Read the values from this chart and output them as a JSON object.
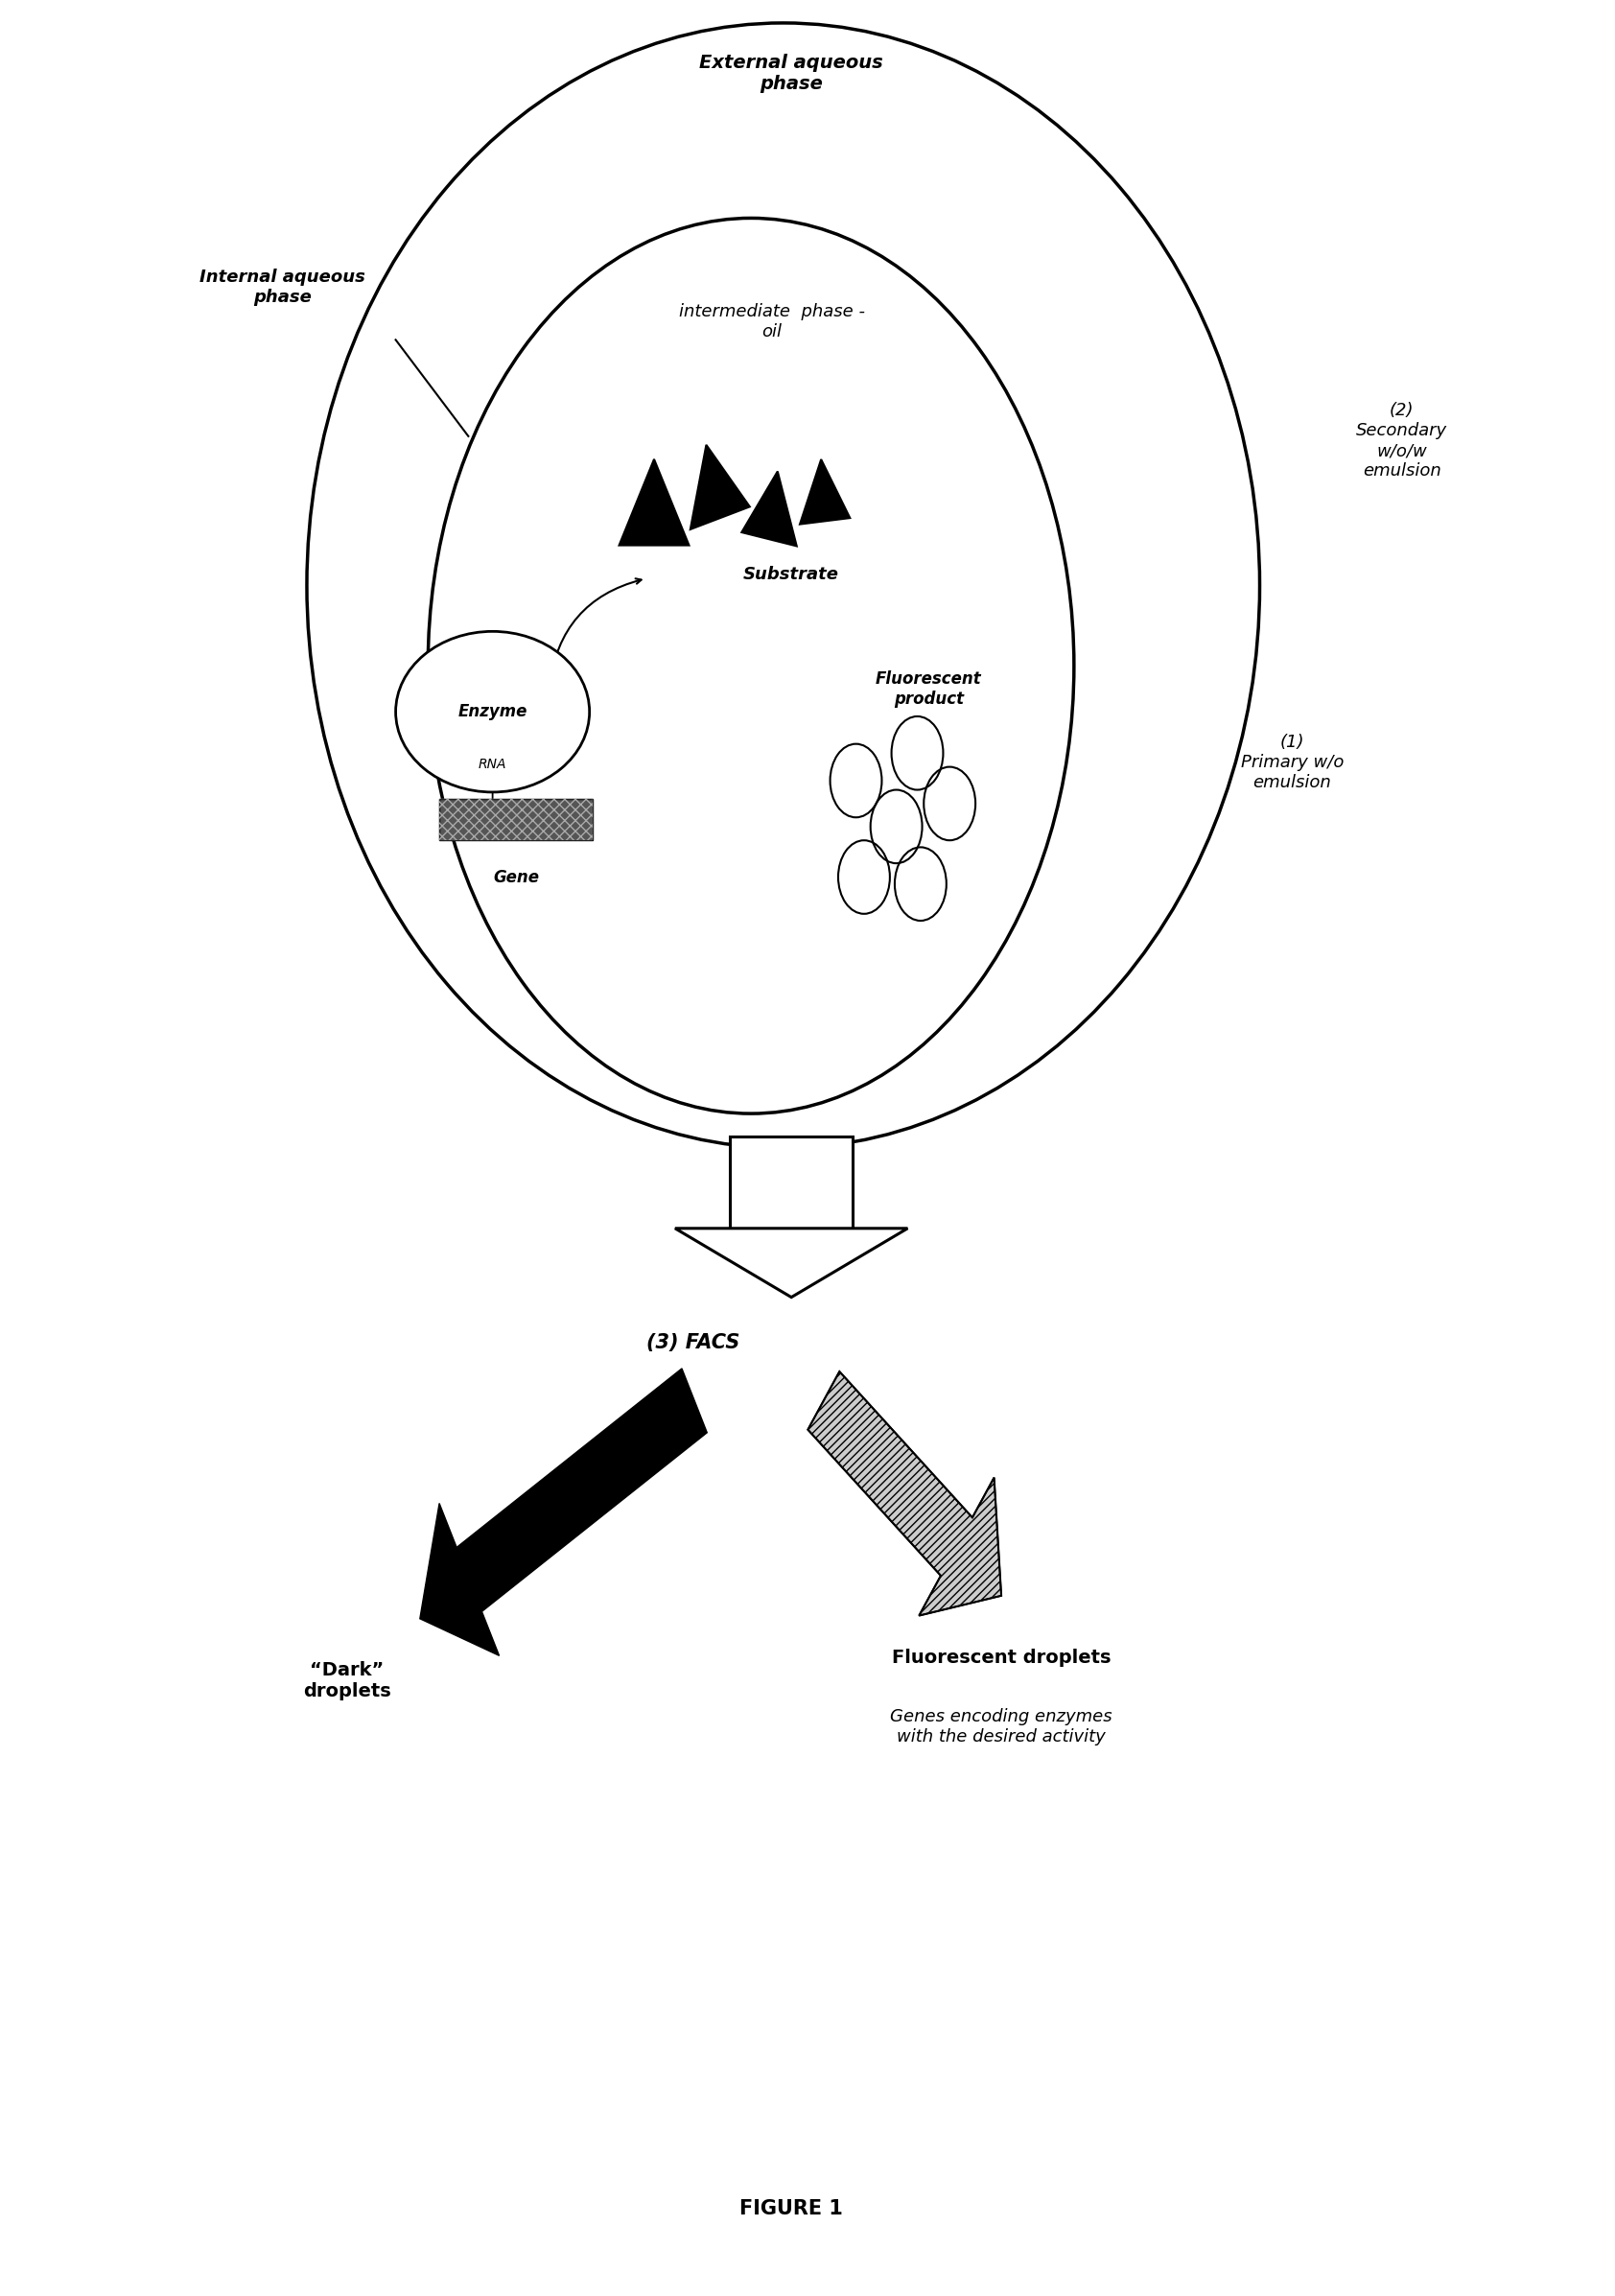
{
  "bg_color": "#ffffff",
  "fig_width": 16.84,
  "fig_height": 23.94,
  "figure_label": "FIGURE 1",
  "external_aqueous": "External aqueous\nphase",
  "internal_aqueous": "Internal aqueous\nphase",
  "intermediate_phase": "intermediate  phase -\noil",
  "secondary_label": "(2)\nSecondary\nw/o/w\nemulsion",
  "primary_label": "(1)\nPrimary w/o\nemulsion",
  "substrate_label": "Substrate",
  "fluorescent_label": "Fluorescent\nproduct",
  "enzyme_label": "Enzyme",
  "rna_label": "RNA",
  "gene_label": "Gene",
  "facs_label": "(3) FACS",
  "dark_droplets_label": "“Dark”\ndroplets",
  "fluorescent_droplets_label": "Fluorescent droplets",
  "genes_encoding_label": "Genes encoding enzymes\nwith the desired activity"
}
